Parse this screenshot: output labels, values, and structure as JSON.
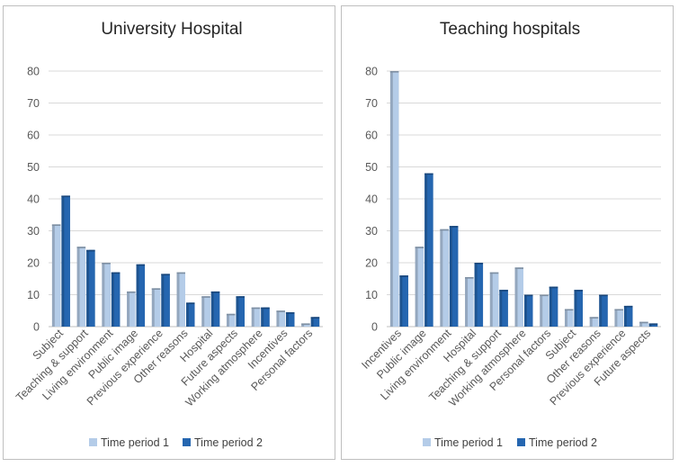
{
  "legend_labels": [
    "Time period 1",
    "Time period 2"
  ],
  "colors": {
    "period1": "#b4cce8",
    "period2": "#2566b0",
    "grid": "#d9d9d9",
    "axis": "#bfbfbf",
    "text": "#595959",
    "title": "#262626"
  },
  "chart_data": [
    {
      "type": "bar",
      "title": "University Hospital",
      "categories": [
        "Subject",
        "Teaching & support",
        "Living environment",
        "Public image",
        "Previous experience",
        "Other reasons",
        "Hospital",
        "Future aspects",
        "Working atmosphere",
        "Incentives",
        "Personal factors"
      ],
      "series": [
        {
          "name": "Time period 1",
          "values": [
            32,
            25,
            20,
            11,
            12,
            17,
            9.5,
            4,
            6,
            5,
            1
          ]
        },
        {
          "name": "Time period 2",
          "values": [
            41,
            24,
            17,
            19.5,
            16.5,
            7.5,
            11,
            9.5,
            6,
            4.5,
            3
          ]
        }
      ],
      "yticks": [
        "0",
        "10",
        "20",
        "30",
        "40",
        "50",
        "60",
        "70",
        "80"
      ],
      "ylim": [
        0,
        80
      ],
      "legend": "bottom"
    },
    {
      "type": "bar",
      "title": "Teaching hospitals",
      "categories": [
        "Incentives",
        "Public image",
        "Living environment",
        "Hospital",
        "Teaching & support",
        "Working atmosphere",
        "Personal factors",
        "Subject",
        "Other reasons",
        "Previous experience",
        "Future aspects"
      ],
      "series": [
        {
          "name": "Time period 1",
          "values": [
            80,
            25,
            30.5,
            15.5,
            17,
            18.5,
            10,
            5.5,
            3,
            5.5,
            1.5
          ]
        },
        {
          "name": "Time period 2",
          "values": [
            16,
            48,
            31.5,
            20,
            11.5,
            10,
            12.5,
            11.5,
            10,
            6.5,
            1
          ]
        }
      ],
      "yticks": [
        "0",
        "10",
        "20",
        "30",
        "40",
        "50",
        "60",
        "70",
        "80"
      ],
      "ylim": [
        0,
        80
      ],
      "legend": "bottom"
    }
  ]
}
